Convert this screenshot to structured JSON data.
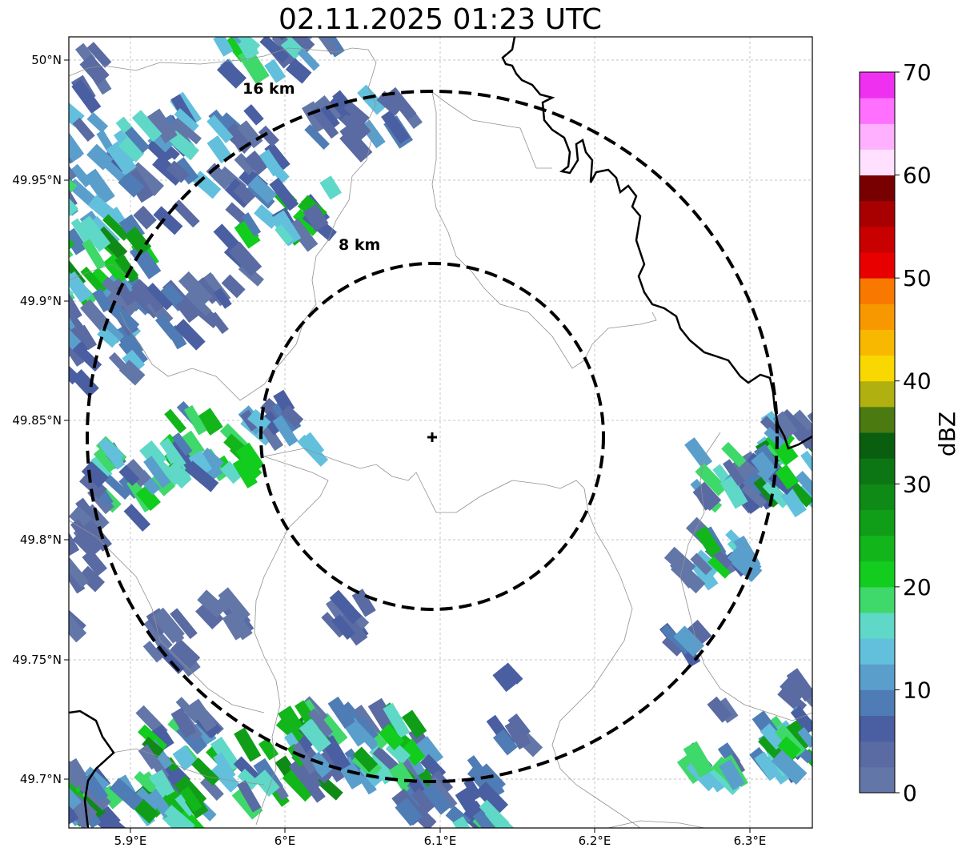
{
  "title": "02.11.2025 01:23 UTC",
  "map": {
    "lon_ticks": [
      "5.9°E",
      "6°E",
      "6.1°E",
      "6.2°E",
      "6.3°E"
    ],
    "lat_ticks": [
      "50°N",
      "49.95°N",
      "49.9°N",
      "49.85°N",
      "49.8°N",
      "49.75°N",
      "49.7°N"
    ],
    "radar_site": {
      "lon": 6.095,
      "lat": 49.843
    },
    "range_rings": [
      {
        "label": "8 km",
        "radius_km": 8
      },
      {
        "label": "16 km",
        "radius_km": 16
      }
    ],
    "grid": true
  },
  "colorbar": {
    "label": "dBZ",
    "ticks": [
      "0",
      "10",
      "20",
      "30",
      "40",
      "50",
      "60",
      "70"
    ],
    "min": 0,
    "max": 70,
    "step": 2.5,
    "colors": [
      "#6376a8",
      "#5a6aa2",
      "#4a5ea2",
      "#4f7cb4",
      "#5a9ecc",
      "#62c0dc",
      "#5fd8c8",
      "#3fd86a",
      "#12cc1e",
      "#12b61a",
      "#109e18",
      "#0f8a16",
      "#0d7614",
      "#0a5e10",
      "#4a7a10",
      "#b0b010",
      "#f8d800",
      "#f8b800",
      "#f89800",
      "#f87800",
      "#e80000",
      "#c80000",
      "#a80000",
      "#780000",
      "#ffe0ff",
      "#ffb0ff",
      "#ff70ff",
      "#f030f0"
    ]
  }
}
